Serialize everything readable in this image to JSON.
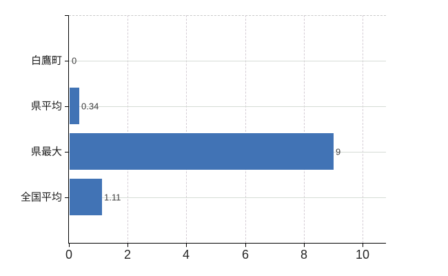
{
  "chart_data": {
    "type": "bar",
    "orientation": "horizontal",
    "title": "",
    "xlabel": "",
    "ylabel": "",
    "categories": [
      "白鷹町",
      "県平均",
      "県最大",
      "全国平均"
    ],
    "values": [
      0,
      0.34,
      9,
      1.11
    ],
    "value_labels": [
      "0",
      "0.34",
      "9",
      "1.11"
    ],
    "xtick_labels": [
      "0",
      "2",
      "4",
      "6",
      "8",
      "10"
    ],
    "xtick_values": [
      0,
      2,
      4,
      6,
      8,
      10
    ],
    "xlim": [
      0,
      10.8
    ],
    "grid": "on",
    "legend": "none"
  },
  "colors": {
    "bar": "#4173b5",
    "grid_horizontal": "#d5dbd5",
    "grid_vertical": "#d4ccd4",
    "plot_top_border": "#c9c9c9",
    "axis": "#000000",
    "tick_label": "#262626",
    "category_label": "#1a1a1a",
    "value_label": "#3d3d3d",
    "background": "#ffffff"
  }
}
